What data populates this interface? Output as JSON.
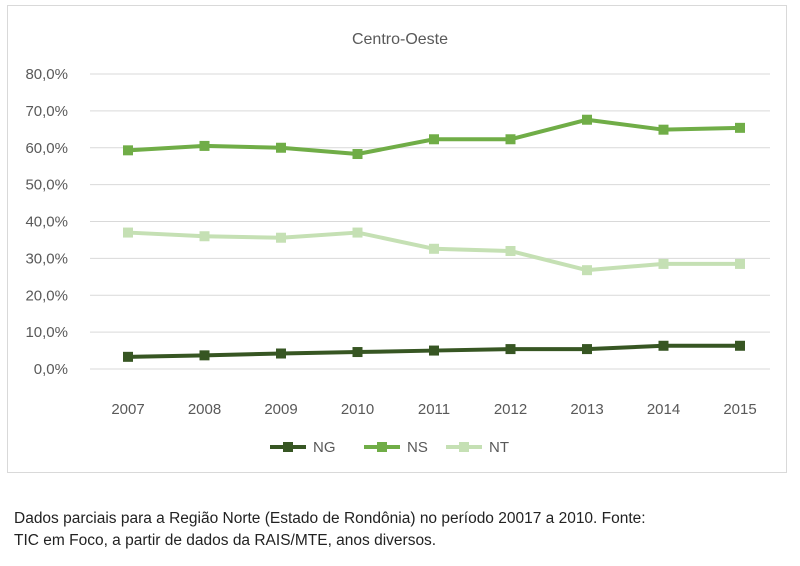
{
  "caption": {
    "line1": "Dados parciais para a Região Norte (Estado de Rondônia) no período 20017 a 2010. Fonte:",
    "line2": "TIC em Foco, a partir de dados da RAIS/MTE, anos diversos."
  },
  "chart_data": {
    "type": "line",
    "title": "Centro-Oeste",
    "xlabel": "",
    "ylabel": "",
    "categories": [
      "2007",
      "2008",
      "2009",
      "2010",
      "2011",
      "2012",
      "2013",
      "2014",
      "2015"
    ],
    "y_ticks": [
      "0,0%",
      "10,0%",
      "20,0%",
      "30,0%",
      "40,0%",
      "50,0%",
      "60,0%",
      "70,0%",
      "80,0%"
    ],
    "ylim": [
      0,
      80
    ],
    "grid": true,
    "legend_position": "bottom",
    "series": [
      {
        "name": "NG",
        "color": "#375623",
        "values": [
          3.3,
          3.7,
          4.2,
          4.6,
          5.0,
          5.4,
          5.4,
          6.3,
          6.3
        ]
      },
      {
        "name": "NS",
        "color": "#70ad47",
        "values": [
          59.3,
          60.5,
          60.0,
          58.3,
          62.3,
          62.3,
          67.6,
          64.9,
          65.4
        ]
      },
      {
        "name": "NT",
        "color": "#c5e0b4",
        "values": [
          37.0,
          36.0,
          35.6,
          37.0,
          32.6,
          32.0,
          26.8,
          28.5,
          28.5
        ]
      }
    ]
  }
}
